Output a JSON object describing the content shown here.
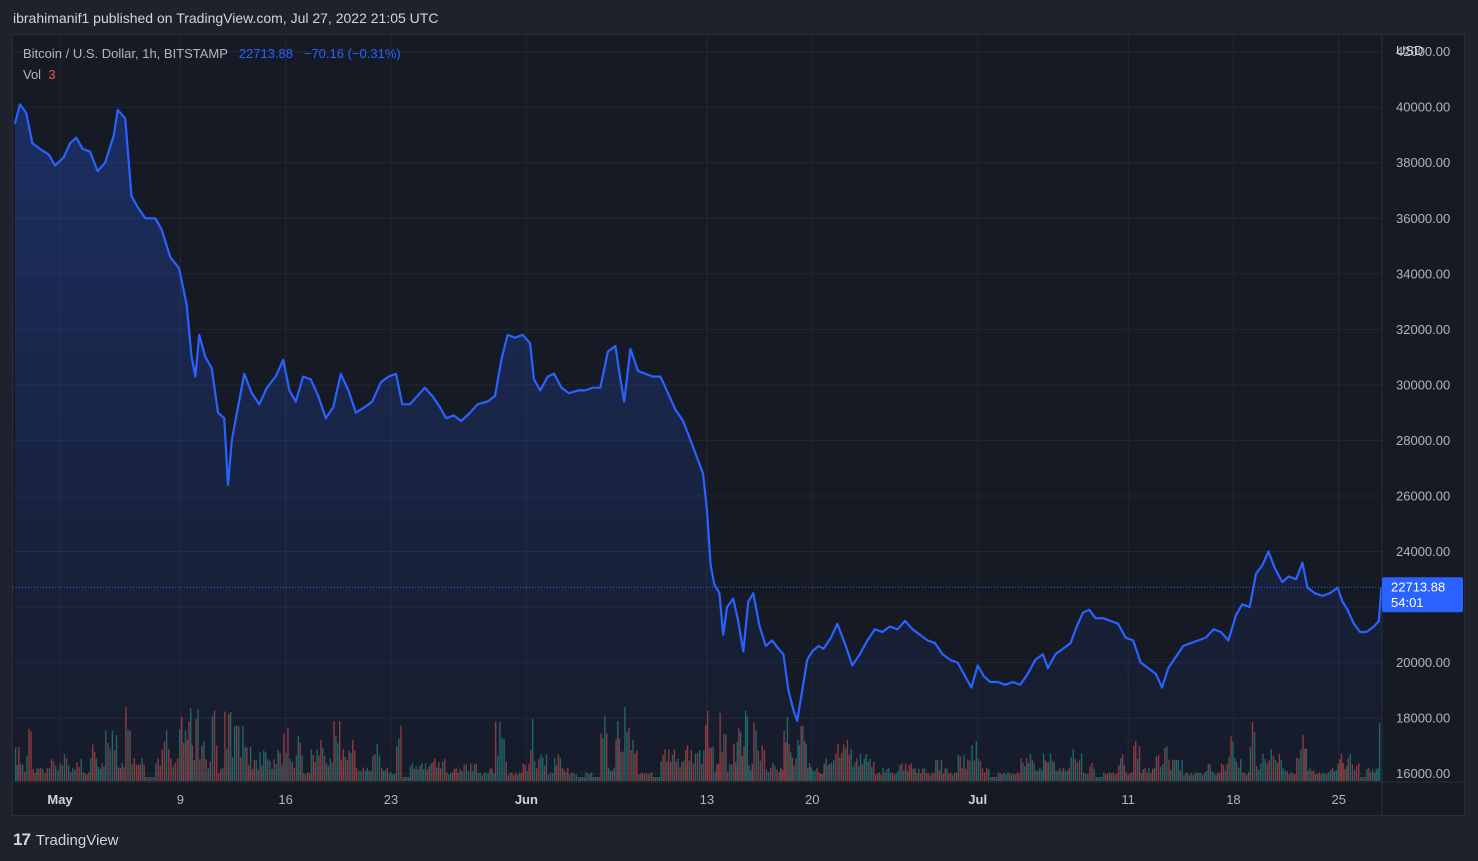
{
  "publisher": {
    "text": "ibrahimanif1 published on TradingView.com, Jul 27, 2022 21:05 UTC"
  },
  "legend": {
    "symbol": "Bitcoin / U.S. Dollar, 1h, BITSTAMP",
    "last": "22713.88",
    "change": "−70.16 (−0.31%)",
    "vol_label": "Vol",
    "vol_value": "3"
  },
  "price_tag": {
    "price": "22713.88",
    "countdown": "54:01"
  },
  "currency": "USD",
  "footer": {
    "brand": "TradingView",
    "logo": "17"
  },
  "colors": {
    "background": "#161a25",
    "line": "#2962ff",
    "up_volume": "#26a69a",
    "down_volume": "#ef5350",
    "grid": "#232733"
  },
  "chart_data": {
    "type": "area",
    "title": "Bitcoin / U.S. Dollar, 1h, BITSTAMP",
    "xlabel": "",
    "ylabel": "USD",
    "ylim": [
      15700,
      42600
    ],
    "grid": true,
    "y_ticks": [
      16000,
      18000,
      20000,
      22000,
      24000,
      26000,
      28000,
      30000,
      32000,
      34000,
      36000,
      38000,
      40000,
      42000
    ],
    "y_tick_labels": [
      "16000.00",
      "18000.00",
      "20000.00",
      "22000.00",
      "24000.00",
      "26000.00",
      "28000.00",
      "30000.00",
      "32000.00",
      "34000.00",
      "36000.00",
      "38000.00",
      "40000.00",
      "42000.00"
    ],
    "x_ticks": [
      {
        "date": "2022-05-01",
        "label": "May"
      },
      {
        "date": "2022-05-09",
        "label": "9"
      },
      {
        "date": "2022-05-16",
        "label": "16"
      },
      {
        "date": "2022-05-23",
        "label": "23"
      },
      {
        "date": "2022-06-01",
        "label": "Jun"
      },
      {
        "date": "2022-06-13",
        "label": "13"
      },
      {
        "date": "2022-06-20",
        "label": "20"
      },
      {
        "date": "2022-07-01",
        "label": "Jul"
      },
      {
        "date": "2022-07-11",
        "label": "11"
      },
      {
        "date": "2022-07-18",
        "label": "18"
      },
      {
        "date": "2022-07-25",
        "label": "25"
      }
    ],
    "x_range": [
      "2022-04-27T21:00",
      "2022-07-27T21:00"
    ],
    "series": [
      {
        "values": [
          [
            "2022-04-28T00:00",
            39400
          ],
          [
            "2022-04-28T08:00",
            40100
          ],
          [
            "2022-04-28T18:00",
            39800
          ],
          [
            "2022-04-29T04:00",
            38700
          ],
          [
            "2022-04-29T16:00",
            38500
          ],
          [
            "2022-04-30T06:00",
            38300
          ],
          [
            "2022-04-30T16:00",
            37900
          ],
          [
            "2022-05-01T06:00",
            38200
          ],
          [
            "2022-05-01T16:00",
            38700
          ],
          [
            "2022-05-02T02:00",
            38900
          ],
          [
            "2022-05-02T12:00",
            38500
          ],
          [
            "2022-05-03T00:00",
            38400
          ],
          [
            "2022-05-03T12:00",
            37700
          ],
          [
            "2022-05-04T00:00",
            38000
          ],
          [
            "2022-05-04T14:00",
            39000
          ],
          [
            "2022-05-04T20:00",
            39900
          ],
          [
            "2022-05-05T08:00",
            39600
          ],
          [
            "2022-05-05T18:00",
            36800
          ],
          [
            "2022-05-06T04:00",
            36400
          ],
          [
            "2022-05-06T16:00",
            36000
          ],
          [
            "2022-05-07T08:00",
            36000
          ],
          [
            "2022-05-07T18:00",
            35600
          ],
          [
            "2022-05-08T08:00",
            34600
          ],
          [
            "2022-05-08T22:00",
            34200
          ],
          [
            "2022-05-09T10:00",
            32900
          ],
          [
            "2022-05-09T18:00",
            31000
          ],
          [
            "2022-05-10T00:00",
            30300
          ],
          [
            "2022-05-10T06:00",
            31800
          ],
          [
            "2022-05-10T16:00",
            31000
          ],
          [
            "2022-05-11T02:00",
            30600
          ],
          [
            "2022-05-11T12:00",
            29000
          ],
          [
            "2022-05-11T22:00",
            28800
          ],
          [
            "2022-05-12T04:00",
            26400
          ],
          [
            "2022-05-12T10:00",
            28000
          ],
          [
            "2022-05-12T20:00",
            29200
          ],
          [
            "2022-05-13T06:00",
            30400
          ],
          [
            "2022-05-13T18:00",
            29700
          ],
          [
            "2022-05-14T06:00",
            29300
          ],
          [
            "2022-05-14T18:00",
            29900
          ],
          [
            "2022-05-15T08:00",
            30300
          ],
          [
            "2022-05-15T20:00",
            30900
          ],
          [
            "2022-05-16T06:00",
            29800
          ],
          [
            "2022-05-16T16:00",
            29400
          ],
          [
            "2022-05-17T04:00",
            30300
          ],
          [
            "2022-05-17T16:00",
            30200
          ],
          [
            "2022-05-18T04:00",
            29600
          ],
          [
            "2022-05-18T16:00",
            28800
          ],
          [
            "2022-05-19T04:00",
            29200
          ],
          [
            "2022-05-19T16:00",
            30400
          ],
          [
            "2022-05-20T04:00",
            29800
          ],
          [
            "2022-05-20T16:00",
            29000
          ],
          [
            "2022-05-21T06:00",
            29200
          ],
          [
            "2022-05-21T18:00",
            29400
          ],
          [
            "2022-05-22T08:00",
            30100
          ],
          [
            "2022-05-22T20:00",
            30300
          ],
          [
            "2022-05-23T08:00",
            30400
          ],
          [
            "2022-05-23T18:00",
            29300
          ],
          [
            "2022-05-24T06:00",
            29300
          ],
          [
            "2022-05-24T18:00",
            29600
          ],
          [
            "2022-05-25T06:00",
            29900
          ],
          [
            "2022-05-25T18:00",
            29600
          ],
          [
            "2022-05-26T06:00",
            29200
          ],
          [
            "2022-05-26T16:00",
            28800
          ],
          [
            "2022-05-27T04:00",
            28900
          ],
          [
            "2022-05-27T16:00",
            28700
          ],
          [
            "2022-05-28T06:00",
            29000
          ],
          [
            "2022-05-28T18:00",
            29300
          ],
          [
            "2022-05-29T10:00",
            29400
          ],
          [
            "2022-05-29T22:00",
            29600
          ],
          [
            "2022-05-30T08:00",
            30900
          ],
          [
            "2022-05-30T18:00",
            31800
          ],
          [
            "2022-05-31T06:00",
            31700
          ],
          [
            "2022-05-31T18:00",
            31800
          ],
          [
            "2022-06-01T06:00",
            31500
          ],
          [
            "2022-06-01T12:00",
            30200
          ],
          [
            "2022-06-01T22:00",
            29800
          ],
          [
            "2022-06-02T10:00",
            30300
          ],
          [
            "2022-06-02T20:00",
            30400
          ],
          [
            "2022-06-03T08:00",
            29900
          ],
          [
            "2022-06-03T20:00",
            29700
          ],
          [
            "2022-06-04T10:00",
            29800
          ],
          [
            "2022-06-04T22:00",
            29800
          ],
          [
            "2022-06-05T10:00",
            29900
          ],
          [
            "2022-06-05T22:00",
            29900
          ],
          [
            "2022-06-06T10:00",
            31200
          ],
          [
            "2022-06-06T22:00",
            31400
          ],
          [
            "2022-06-07T06:00",
            30200
          ],
          [
            "2022-06-07T12:00",
            29400
          ],
          [
            "2022-06-07T22:00",
            31300
          ],
          [
            "2022-06-08T10:00",
            30500
          ],
          [
            "2022-06-08T22:00",
            30400
          ],
          [
            "2022-06-09T10:00",
            30300
          ],
          [
            "2022-06-09T22:00",
            30300
          ],
          [
            "2022-06-10T10:00",
            29700
          ],
          [
            "2022-06-10T22:00",
            29100
          ],
          [
            "2022-06-11T10:00",
            28700
          ],
          [
            "2022-06-11T22:00",
            28000
          ],
          [
            "2022-06-12T08:00",
            27400
          ],
          [
            "2022-06-12T18:00",
            26800
          ],
          [
            "2022-06-13T00:00",
            25500
          ],
          [
            "2022-06-13T06:00",
            23500
          ],
          [
            "2022-06-13T12:00",
            22800
          ],
          [
            "2022-06-13T20:00",
            22500
          ],
          [
            "2022-06-14T02:00",
            21000
          ],
          [
            "2022-06-14T08:00",
            22000
          ],
          [
            "2022-06-14T18:00",
            22300
          ],
          [
            "2022-06-15T02:00",
            21500
          ],
          [
            "2022-06-15T10:00",
            20400
          ],
          [
            "2022-06-15T18:00",
            22200
          ],
          [
            "2022-06-16T02:00",
            22500
          ],
          [
            "2022-06-16T12:00",
            21300
          ],
          [
            "2022-06-16T22:00",
            20600
          ],
          [
            "2022-06-17T08:00",
            20800
          ],
          [
            "2022-06-17T18:00",
            20500
          ],
          [
            "2022-06-18T02:00",
            20300
          ],
          [
            "2022-06-18T10:00",
            19000
          ],
          [
            "2022-06-18T18:00",
            18300
          ],
          [
            "2022-06-19T00:00",
            17900
          ],
          [
            "2022-06-19T08:00",
            19000
          ],
          [
            "2022-06-19T16:00",
            20100
          ],
          [
            "2022-06-20T00:00",
            20400
          ],
          [
            "2022-06-20T10:00",
            20600
          ],
          [
            "2022-06-20T18:00",
            20500
          ],
          [
            "2022-06-21T06:00",
            20900
          ],
          [
            "2022-06-21T16:00",
            21400
          ],
          [
            "2022-06-22T04:00",
            20700
          ],
          [
            "2022-06-22T16:00",
            19900
          ],
          [
            "2022-06-23T04:00",
            20300
          ],
          [
            "2022-06-23T16:00",
            20800
          ],
          [
            "2022-06-24T04:00",
            21200
          ],
          [
            "2022-06-24T16:00",
            21100
          ],
          [
            "2022-06-25T04:00",
            21300
          ],
          [
            "2022-06-25T16:00",
            21200
          ],
          [
            "2022-06-26T04:00",
            21500
          ],
          [
            "2022-06-26T16:00",
            21200
          ],
          [
            "2022-06-27T04:00",
            21000
          ],
          [
            "2022-06-27T16:00",
            20800
          ],
          [
            "2022-06-28T04:00",
            20700
          ],
          [
            "2022-06-28T16:00",
            20300
          ],
          [
            "2022-06-29T04:00",
            20100
          ],
          [
            "2022-06-29T16:00",
            20000
          ],
          [
            "2022-06-30T04:00",
            19500
          ],
          [
            "2022-06-30T14:00",
            19100
          ],
          [
            "2022-07-01T00:00",
            19900
          ],
          [
            "2022-07-01T10:00",
            19500
          ],
          [
            "2022-07-01T20:00",
            19300
          ],
          [
            "2022-07-02T08:00",
            19300
          ],
          [
            "2022-07-02T20:00",
            19200
          ],
          [
            "2022-07-03T08:00",
            19300
          ],
          [
            "2022-07-03T20:00",
            19200
          ],
          [
            "2022-07-04T08:00",
            19600
          ],
          [
            "2022-07-04T20:00",
            20100
          ],
          [
            "2022-07-05T08:00",
            20300
          ],
          [
            "2022-07-05T16:00",
            19800
          ],
          [
            "2022-07-06T04:00",
            20300
          ],
          [
            "2022-07-06T16:00",
            20500
          ],
          [
            "2022-07-07T04:00",
            20700
          ],
          [
            "2022-07-07T14:00",
            21300
          ],
          [
            "2022-07-08T00:00",
            21800
          ],
          [
            "2022-07-08T10:00",
            21900
          ],
          [
            "2022-07-08T20:00",
            21600
          ],
          [
            "2022-07-09T08:00",
            21600
          ],
          [
            "2022-07-09T20:00",
            21500
          ],
          [
            "2022-07-10T08:00",
            21400
          ],
          [
            "2022-07-10T20:00",
            20900
          ],
          [
            "2022-07-11T08:00",
            20800
          ],
          [
            "2022-07-11T20:00",
            20000
          ],
          [
            "2022-07-12T08:00",
            19800
          ],
          [
            "2022-07-12T20:00",
            19600
          ],
          [
            "2022-07-13T06:00",
            19100
          ],
          [
            "2022-07-13T16:00",
            19800
          ],
          [
            "2022-07-14T04:00",
            20200
          ],
          [
            "2022-07-14T16:00",
            20600
          ],
          [
            "2022-07-15T04:00",
            20700
          ],
          [
            "2022-07-15T16:00",
            20800
          ],
          [
            "2022-07-16T04:00",
            20900
          ],
          [
            "2022-07-16T16:00",
            21200
          ],
          [
            "2022-07-17T04:00",
            21100
          ],
          [
            "2022-07-17T16:00",
            20800
          ],
          [
            "2022-07-18T04:00",
            21700
          ],
          [
            "2022-07-18T14:00",
            22100
          ],
          [
            "2022-07-19T02:00",
            22000
          ],
          [
            "2022-07-19T12:00",
            23200
          ],
          [
            "2022-07-19T22:00",
            23500
          ],
          [
            "2022-07-20T08:00",
            24000
          ],
          [
            "2022-07-20T18:00",
            23400
          ],
          [
            "2022-07-21T06:00",
            22900
          ],
          [
            "2022-07-21T16:00",
            23100
          ],
          [
            "2022-07-22T04:00",
            23000
          ],
          [
            "2022-07-22T14:00",
            23600
          ],
          [
            "2022-07-22T22:00",
            22700
          ],
          [
            "2022-07-23T10:00",
            22500
          ],
          [
            "2022-07-23T22:00",
            22400
          ],
          [
            "2022-07-24T10:00",
            22500
          ],
          [
            "2022-07-24T22:00",
            22700
          ],
          [
            "2022-07-25T06:00",
            22200
          ],
          [
            "2022-07-25T14:00",
            21900
          ],
          [
            "2022-07-26T00:00",
            21400
          ],
          [
            "2022-07-26T10:00",
            21100
          ],
          [
            "2022-07-26T20:00",
            21100
          ],
          [
            "2022-07-27T08:00",
            21300
          ],
          [
            "2022-07-27T16:00",
            21500
          ],
          [
            "2022-07-27T20:00",
            22713.88
          ]
        ]
      }
    ]
  }
}
